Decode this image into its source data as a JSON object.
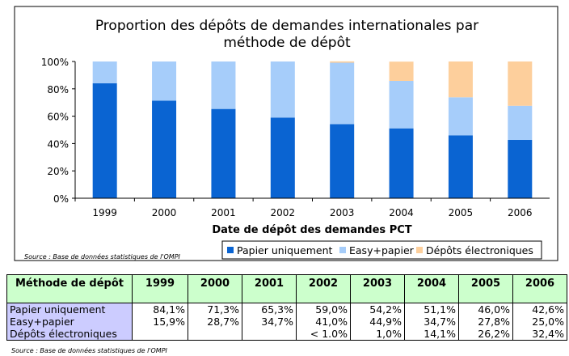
{
  "chart_data": {
    "type": "bar",
    "stacked": true,
    "title": "Proportion des dépôts de demandes internationales  par méthode de dépôt",
    "title_lines": [
      "Proportion des dépôts de demandes internationales  par",
      "méthode de dépôt"
    ],
    "xlabel": "Date de dépôt des demandes PCT",
    "ylabel": "",
    "ylim": [
      0,
      100
    ],
    "yticks": [
      "0%",
      "20%",
      "40%",
      "60%",
      "80%",
      "100%"
    ],
    "categories": [
      "1999",
      "2000",
      "2001",
      "2002",
      "2003",
      "2004",
      "2005",
      "2006"
    ],
    "series": [
      {
        "name": "Papier uniquement",
        "color": "#0a64d2",
        "values": [
          84.1,
          71.3,
          65.3,
          59.0,
          54.2,
          51.1,
          46.0,
          42.6
        ]
      },
      {
        "name": "Easy+papier",
        "color": "#a6cdfa",
        "values": [
          15.9,
          28.7,
          34.7,
          41.0,
          44.9,
          34.7,
          27.8,
          25.0
        ]
      },
      {
        "name": "Dépôts électroniques",
        "color": "#fdcf9c",
        "values": [
          0,
          0,
          0,
          0,
          1.0,
          14.1,
          26.2,
          32.4
        ]
      }
    ],
    "legend": "bottom-right",
    "grid": false,
    "source": "Source : Base de données statistiques de l'OMPI"
  },
  "table": {
    "header": [
      "Méthode de dépôt",
      "1999",
      "2000",
      "2001",
      "2002",
      "2003",
      "2004",
      "2005",
      "2006"
    ],
    "rows": [
      [
        "Papier uniquement",
        "84,1%",
        "71,3%",
        "65,3%",
        "59,0%",
        "54,2%",
        "51,1%",
        "46,0%",
        "42,6%"
      ],
      [
        "Easy+papier",
        "15,9%",
        "28,7%",
        "34,7%",
        "41,0%",
        "44,9%",
        "34,7%",
        "27,8%",
        "25,0%"
      ],
      [
        "Dépôts électroniques",
        "",
        "",
        "",
        "< 1.0%",
        "1,0%",
        "14,1%",
        "26,2%",
        "32,4%"
      ]
    ],
    "source": "Source : Base de données statistiques de l'OMPI"
  }
}
